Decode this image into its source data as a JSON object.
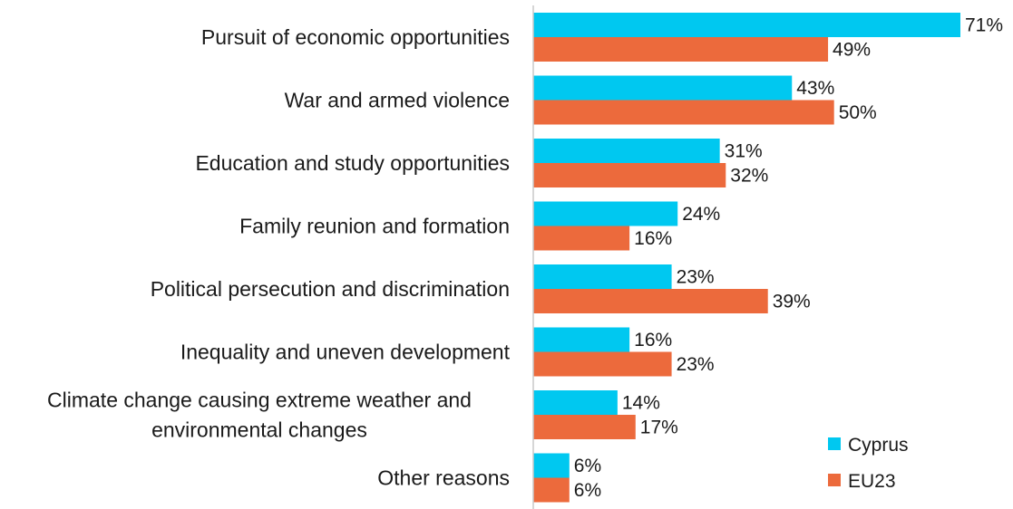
{
  "chart_data": {
    "type": "bar",
    "orientation": "horizontal",
    "categories": [
      [
        "Pursuit of economic opportunities"
      ],
      [
        "War and armed violence"
      ],
      [
        "Education and study opportunities"
      ],
      [
        "Family reunion and formation"
      ],
      [
        "Political persecution and discrimination"
      ],
      [
        "Inequality and uneven development"
      ],
      [
        "Climate change causing extreme weather and",
        "environmental changes"
      ],
      [
        "Other reasons"
      ]
    ],
    "series": [
      {
        "name": "Cyprus",
        "color": "#00c8f0",
        "values": [
          71,
          43,
          31,
          24,
          23,
          16,
          14,
          6
        ],
        "labels": [
          "71%",
          "43%",
          "31%",
          "24%",
          "23%",
          "16%",
          "14%",
          "6%"
        ]
      },
      {
        "name": "EU23",
        "color": "#ec6a3c",
        "values": [
          49,
          50,
          32,
          16,
          39,
          23,
          17,
          6
        ],
        "labels": [
          "49%",
          "50%",
          "32%",
          "16%",
          "39%",
          "23%",
          "17%",
          "6%"
        ]
      }
    ],
    "xlim": [
      0,
      71
    ],
    "axis_color": "#c8c8c8",
    "grid": false,
    "legend_position": "bottom-right"
  }
}
